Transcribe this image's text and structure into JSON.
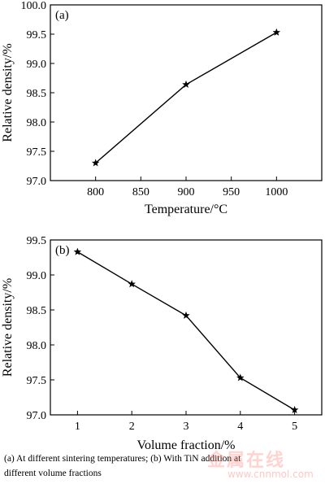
{
  "chart_data": [
    {
      "type": "line",
      "panel_label": "(a)",
      "xlabel": "Temperature/°C",
      "ylabel": "Relative density/%",
      "x": [
        800,
        900,
        1000
      ],
      "series": [
        {
          "values": [
            97.3,
            98.64,
            99.53
          ],
          "marker": "star"
        }
      ],
      "xlim": [
        750,
        1050
      ],
      "ylim": [
        97.0,
        100.0
      ],
      "xticks": [
        800,
        850,
        900,
        950,
        1000
      ],
      "yticks": [
        97.0,
        97.5,
        98.0,
        98.5,
        99.0,
        99.5,
        100.0
      ],
      "xtick_labels": [
        "800",
        "850",
        "900",
        "950",
        "1000"
      ],
      "ytick_labels": [
        "97.0",
        "97.5",
        "98.0",
        "98.5",
        "99.0",
        "99.5",
        "100.0"
      ],
      "grid": false
    },
    {
      "type": "line",
      "panel_label": "(b)",
      "xlabel": "Volume fraction/%",
      "ylabel": "Relative density/%",
      "x": [
        1,
        2,
        3,
        4,
        5
      ],
      "series": [
        {
          "values": [
            99.33,
            98.87,
            98.42,
            97.53,
            97.07
          ],
          "marker": "star"
        }
      ],
      "xlim": [
        0.5,
        5.5
      ],
      "ylim": [
        97.0,
        99.5
      ],
      "xticks": [
        1,
        2,
        3,
        4,
        5
      ],
      "yticks": [
        97.0,
        97.5,
        98.0,
        98.5,
        99.0,
        99.5
      ],
      "xtick_labels": [
        "1",
        "2",
        "3",
        "4",
        "5"
      ],
      "ytick_labels": [
        "97.0",
        "97.5",
        "98.0",
        "98.5",
        "99.0",
        "99.5"
      ],
      "grid": false
    }
  ],
  "caption": {
    "line1": "(a) At different sintering temperatures; (b) With TiN addition at",
    "line2": "different volume fractions"
  },
  "watermark": {
    "text": "金属在线",
    "url": "www.cnnmol.com"
  }
}
